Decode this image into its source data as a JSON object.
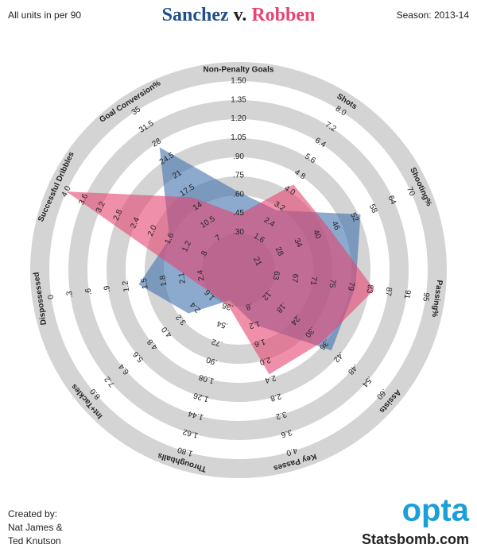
{
  "chart_data": {
    "type": "radar",
    "title_connector": "v.",
    "note": "All units in per 90",
    "season": "Season: 2013-14",
    "credits": [
      "Created by:",
      "Nat James &",
      "Ted Knutson"
    ],
    "logo": "opta",
    "site": "Statsbomb.com",
    "axes": [
      {
        "name": "Non-Penalty Goals",
        "lim": [
          0,
          1.5
        ],
        "ticks": [
          {
            "value": 0.3,
            "label": ".30"
          },
          {
            "value": 0.45,
            "label": ".45"
          },
          {
            "value": 0.6,
            "label": ".60"
          },
          {
            "value": 0.75,
            "label": ".75"
          },
          {
            "value": 0.9,
            "label": ".90"
          },
          1.05,
          {
            "value": 1.2,
            "label": "1.20"
          },
          1.35,
          {
            "value": 1.5,
            "label": "1.50"
          }
        ]
      },
      {
        "name": "Shots",
        "lim": [
          0,
          8
        ],
        "ticks": [
          1.6,
          2.4,
          3.2,
          {
            "value": 4,
            "label": "4.0"
          },
          4.8,
          5.6,
          6.4,
          7.2,
          {
            "value": 8,
            "label": "8.0"
          }
        ]
      },
      {
        "name": "Shooting%",
        "lim": [
          15,
          70
        ],
        "ticks": [
          21,
          28,
          34,
          40,
          46,
          52,
          58,
          64,
          70
        ]
      },
      {
        "name": "Passing%",
        "lim": [
          55,
          95
        ],
        "ticks": [
          63,
          67,
          71,
          75,
          79,
          83,
          87,
          91,
          95
        ]
      },
      {
        "name": "Assists",
        "lim": [
          0,
          0.6
        ],
        "ticks": [
          {
            "value": 0.12,
            "label": ".12"
          },
          {
            "value": 0.18,
            "label": ".18"
          },
          {
            "value": 0.24,
            "label": ".24"
          },
          {
            "value": 0.3,
            "label": ".30"
          },
          {
            "value": 0.36,
            "label": ".36"
          },
          {
            "value": 0.42,
            "label": ".42"
          },
          {
            "value": 0.48,
            "label": ".48"
          },
          {
            "value": 0.54,
            "label": ".54"
          },
          {
            "value": 0.6,
            "label": ".60"
          }
        ]
      },
      {
        "name": "Key Passes",
        "lim": [
          0,
          4
        ],
        "ticks": [
          {
            "value": 0.8,
            "label": ".8"
          },
          1.2,
          1.6,
          {
            "value": 2,
            "label": "2.0"
          },
          2.4,
          2.8,
          3.2,
          3.6,
          {
            "value": 4,
            "label": "4.0"
          }
        ]
      },
      {
        "name": "Throughballs",
        "lim": [
          0,
          1.8
        ],
        "ticks": [
          {
            "value": 0.36,
            "label": ".36"
          },
          {
            "value": 0.54,
            "label": ".54"
          },
          {
            "value": 0.72,
            "label": ".72"
          },
          {
            "value": 0.9,
            "label": ".90"
          },
          1.08,
          1.26,
          1.44,
          1.62,
          {
            "value": 1.8,
            "label": "1.80"
          }
        ]
      },
      {
        "name": "Int+Tackles",
        "lim": [
          0,
          8
        ],
        "ticks": [
          1.6,
          2.4,
          3.2,
          {
            "value": 4,
            "label": "4.0"
          },
          4.8,
          5.6,
          6.4,
          7.2,
          {
            "value": 8,
            "label": "8.0"
          }
        ]
      },
      {
        "name": "Dispossessed",
        "lim": [
          3,
          0
        ],
        "ticks": [
          2.4,
          2.1,
          1.8,
          1.5,
          1.2,
          {
            "value": 0.9,
            "label": ".9"
          },
          {
            "value": 0.6,
            "label": ".6"
          },
          {
            "value": 0.3,
            "label": ".3"
          },
          0
        ]
      },
      {
        "name": "Successful Dribbles",
        "lim": [
          0,
          4
        ],
        "ticks": [
          {
            "value": 0.8,
            "label": ".8"
          },
          1.2,
          1.6,
          {
            "value": 2,
            "label": "2.0"
          },
          2.4,
          2.8,
          3.2,
          3.6,
          {
            "value": 4,
            "label": "4.0"
          }
        ]
      },
      {
        "name": "Goal Conversion%",
        "lim": [
          0,
          35
        ],
        "ticks": [
          7,
          10.5,
          14,
          17.5,
          21,
          24.5,
          28,
          31.5,
          35
        ]
      }
    ],
    "series": [
      {
        "name": "Sanchez",
        "color": "#3f6fae",
        "values": [
          0.62,
          3.0,
          54,
          80,
          0.39,
          1.2,
          0.3,
          2.8,
          1.4,
          1.6,
          27
        ]
      },
      {
        "name": "Robben",
        "color": "#e5456f",
        "values": [
          0.44,
          4.3,
          44,
          84,
          0.35,
          2.3,
          0.35,
          1.5,
          2.2,
          4.0,
          16
        ]
      }
    ]
  }
}
